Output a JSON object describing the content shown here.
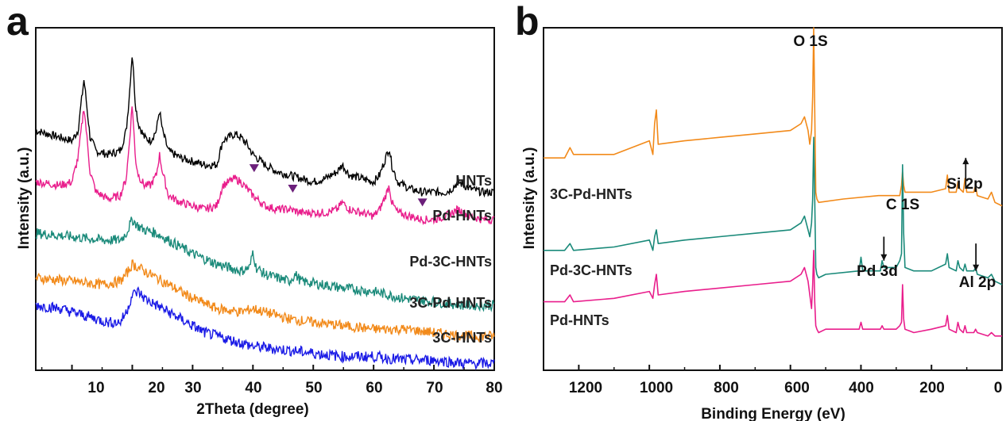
{
  "chart_data": [
    {
      "panel": "a",
      "type": "line",
      "xlabel": "2Theta (degree)",
      "ylabel": "Intensity (a.u.)",
      "xlim": [
        4,
        80
      ],
      "ylim": [
        0,
        100
      ],
      "xticks": [
        10,
        20,
        30,
        40,
        50,
        60,
        70,
        80
      ],
      "yticks_shown": false,
      "grid": false,
      "series": [
        {
          "name": "HNTs",
          "color": "#000000",
          "offset": 44,
          "noise": 1.2,
          "x": [
            4,
            8,
            10,
            11,
            12,
            13,
            14,
            16,
            18,
            19,
            19.5,
            20,
            20.5,
            21,
            22,
            23,
            24,
            24.5,
            25,
            26,
            28,
            30,
            32,
            34,
            35,
            36,
            37,
            38,
            39,
            40,
            42,
            44,
            46,
            48,
            50,
            52,
            54,
            54.8,
            56,
            58,
            60,
            61,
            62,
            62.6,
            63,
            64,
            66,
            68,
            70,
            72,
            73,
            74,
            76,
            78,
            80
          ],
          "y": [
            70,
            68,
            67,
            70,
            85,
            68,
            64,
            63,
            64,
            70,
            80,
            93,
            78,
            72,
            68,
            67,
            70,
            76,
            70,
            64,
            62,
            61,
            60,
            60,
            67,
            68,
            69,
            68,
            66,
            63,
            60,
            58,
            57,
            56,
            55,
            56,
            58,
            60,
            57,
            56,
            55,
            57,
            62,
            65,
            60,
            55,
            53,
            52,
            52,
            52,
            53,
            55,
            53,
            52,
            52
          ]
        },
        {
          "name": "Pd-HNTs",
          "color": "#e91e8c",
          "offset": 34,
          "noise": 1.2,
          "x": [
            4,
            8,
            10,
            11,
            12,
            13,
            14,
            16,
            18,
            19,
            19.5,
            20,
            20.5,
            21,
            22,
            23,
            24,
            24.5,
            25,
            26,
            28,
            30,
            32,
            34,
            35,
            36,
            37,
            38,
            39,
            40,
            42,
            44,
            46,
            48,
            50,
            52,
            54,
            54.8,
            56,
            58,
            60,
            61,
            62,
            62.6,
            63,
            64,
            66,
            68,
            70,
            72,
            73,
            74,
            76,
            78,
            80
          ],
          "y": [
            55,
            54,
            55,
            62,
            77,
            58,
            52,
            50,
            51,
            56,
            66,
            78,
            62,
            57,
            54,
            54,
            57,
            63,
            58,
            51,
            49,
            48,
            47,
            48,
            54,
            55,
            56,
            55,
            53,
            51,
            48,
            47,
            47,
            46,
            46,
            46,
            47,
            49,
            47,
            46,
            45,
            47,
            51,
            54,
            49,
            46,
            45,
            44,
            44,
            45,
            46,
            47,
            45,
            44,
            44
          ]
        },
        {
          "name": "Pd-3C-HNTs",
          "color": "#1a8a7a",
          "offset": 24,
          "noise": 1.5,
          "x": [
            4,
            10,
            15,
            18,
            19,
            20,
            21,
            22,
            24,
            26,
            28,
            30,
            34,
            38,
            39.5,
            40,
            40.5,
            42,
            46,
            47,
            48,
            55,
            60,
            65,
            70,
            75,
            80
          ],
          "y": [
            40,
            39,
            38,
            38,
            40,
            44,
            42,
            41,
            40,
            38,
            36,
            34,
            31,
            29,
            30,
            35,
            30,
            28,
            26,
            28,
            26,
            24,
            23,
            21,
            20,
            19,
            19
          ]
        },
        {
          "name": "3C-Pd-HNTs",
          "color": "#f28a1a",
          "offset": 14,
          "noise": 1.5,
          "x": [
            4,
            10,
            15,
            18,
            19,
            20,
            21,
            22,
            24,
            26,
            28,
            30,
            34,
            38,
            40,
            42,
            46,
            50,
            55,
            60,
            65,
            70,
            75,
            80
          ],
          "y": [
            27,
            26,
            25,
            26,
            28,
            31,
            30,
            29,
            27,
            25,
            23,
            21,
            18,
            17,
            18,
            17,
            15,
            14,
            13,
            12,
            12,
            11,
            10,
            10
          ]
        },
        {
          "name": "3C-HNTs",
          "color": "#1a1ae6",
          "offset": 4,
          "noise": 1.6,
          "x": [
            4,
            8,
            12,
            16,
            18,
            19,
            20,
            21,
            22,
            24,
            26,
            28,
            30,
            32,
            34,
            36,
            40,
            45,
            50,
            55,
            60,
            65,
            70,
            75,
            80
          ],
          "y": [
            19,
            18,
            16,
            14,
            14,
            17,
            22,
            23,
            21,
            19,
            17,
            15,
            13,
            11,
            10,
            9,
            7,
            6,
            5,
            4,
            4,
            3,
            3,
            2,
            2
          ]
        }
      ],
      "markers": [
        {
          "type": "triangle-down",
          "color": "#6b1f7a",
          "x": 40.2,
          "y": 59
        },
        {
          "type": "triangle-down",
          "color": "#6b1f7a",
          "x": 46.6,
          "y": 53
        },
        {
          "type": "triangle-down",
          "color": "#6b1f7a",
          "x": 68.1,
          "y": 49
        }
      ]
    },
    {
      "panel": "b",
      "type": "line",
      "xlabel": "Binding Energy (eV)",
      "ylabel": "Intensity (a.u.)",
      "xlim": [
        1300,
        0
      ],
      "ylim": [
        0,
        100
      ],
      "xticks": [
        1200,
        1000,
        800,
        600,
        400,
        200,
        0
      ],
      "yticks_shown": false,
      "grid": false,
      "series": [
        {
          "name": "3C-Pd-HNTs",
          "color": "#f28a1a",
          "x": [
            1300,
            1240,
            1225,
            1215,
            1100,
            1000,
            990,
            985,
            980,
            975,
            900,
            800,
            700,
            600,
            570,
            560,
            550,
            545,
            540,
            537,
            534,
            531,
            528,
            525,
            520,
            450,
            350,
            300,
            290,
            285,
            282,
            279,
            275,
            250,
            200,
            160,
            155,
            150,
            130,
            125,
            120,
            110,
            105,
            100,
            80,
            75,
            70,
            40,
            30,
            20,
            0
          ],
          "y": [
            62,
            62,
            65,
            63,
            63,
            67,
            63,
            72,
            76,
            66,
            67,
            68,
            69,
            70,
            72,
            74,
            70,
            66,
            70,
            80,
            100,
            76,
            52,
            50,
            49,
            50,
            51,
            51,
            51,
            54,
            58,
            54,
            52,
            52,
            52,
            53,
            57,
            52,
            52,
            55,
            53,
            52,
            56,
            52,
            52,
            54,
            51,
            50,
            52,
            49,
            48
          ]
        },
        {
          "name": "Pd-3C-HNTs",
          "color": "#1a8a7a",
          "x": [
            1300,
            1240,
            1225,
            1215,
            1100,
            1000,
            990,
            985,
            980,
            975,
            900,
            800,
            700,
            600,
            570,
            560,
            550,
            545,
            540,
            537,
            534,
            531,
            528,
            525,
            520,
            500,
            405,
            400,
            395,
            345,
            340,
            335,
            300,
            290,
            285,
            282,
            279,
            275,
            250,
            200,
            160,
            155,
            150,
            130,
            125,
            120,
            110,
            105,
            100,
            80,
            75,
            70,
            40,
            30,
            20,
            0
          ],
          "y": [
            35,
            35,
            37,
            35,
            36,
            38,
            35,
            39,
            41,
            37,
            38,
            39,
            40,
            41,
            43,
            45,
            41,
            39,
            43,
            50,
            68,
            50,
            30,
            28,
            27,
            28,
            29,
            33,
            29,
            29,
            32,
            30,
            30,
            32,
            34,
            60,
            40,
            30,
            29,
            29,
            31,
            34,
            30,
            29,
            32,
            30,
            29,
            31,
            29,
            29,
            30,
            28,
            27,
            28,
            26,
            25
          ]
        },
        {
          "name": "Pd-HNTs",
          "color": "#e91e8c",
          "x": [
            1300,
            1240,
            1225,
            1215,
            1100,
            1000,
            990,
            985,
            980,
            975,
            900,
            800,
            700,
            600,
            570,
            560,
            550,
            545,
            540,
            537,
            534,
            531,
            528,
            525,
            520,
            500,
            405,
            400,
            395,
            345,
            340,
            335,
            300,
            290,
            285,
            282,
            279,
            275,
            250,
            200,
            160,
            155,
            150,
            130,
            125,
            120,
            110,
            105,
            100,
            80,
            75,
            70,
            40,
            30,
            20,
            0
          ],
          "y": [
            20,
            20,
            22,
            20,
            21,
            23,
            21,
            25,
            28,
            22,
            23,
            24,
            25,
            26,
            28,
            30,
            26,
            22,
            18,
            25,
            35,
            20,
            13,
            12,
            11,
            12,
            12,
            14,
            12,
            12,
            13,
            12,
            12,
            13,
            14,
            25,
            15,
            12,
            11,
            12,
            13,
            16,
            12,
            11,
            14,
            12,
            11,
            13,
            11,
            11,
            12,
            11,
            10,
            11,
            10,
            10
          ]
        }
      ],
      "annotations": [
        {
          "text": "O 1S",
          "x": 530,
          "y": 97
        },
        {
          "text": "C 1S",
          "x": 284,
          "y": 59
        },
        {
          "text": "Si 2p",
          "x": 103,
          "y": 62
        },
        {
          "text": "Pd 3d",
          "x": 335,
          "y": 39
        },
        {
          "text": "Al 2p",
          "x": 74,
          "y": 37
        }
      ],
      "arrows": [
        {
          "label": "Si 2p",
          "direction": "up",
          "x": 103,
          "y_from": 53,
          "y_to": 62
        },
        {
          "label": "Pd 3d",
          "direction": "down",
          "x": 335,
          "y_from": 39,
          "y_to": 32
        },
        {
          "label": "Al 2p",
          "direction": "down",
          "x": 74,
          "y_from": 37,
          "y_to": 29
        }
      ]
    }
  ],
  "panels": {
    "a": {
      "letter": "a",
      "xlabel": "2Theta (degree)",
      "ylabel": "Intensity (a.u.)",
      "tick_labels": [
        "10",
        "20",
        "30",
        "40",
        "50",
        "60",
        "70",
        "80"
      ],
      "series_labels": [
        "HNTs",
        "Pd-HNTs",
        "Pd-3C-HNTs",
        "3C-Pd-HNTs",
        "3C-HNTs"
      ]
    },
    "b": {
      "letter": "b",
      "xlabel": "Binding Energy (eV)",
      "ylabel": "Intensity (a.u.)",
      "tick_labels": [
        "1200",
        "1000",
        "800",
        "600",
        "400",
        "200",
        "0"
      ],
      "series_labels": [
        "3C-Pd-HNTs",
        "Pd-3C-HNTs",
        "Pd-HNTs"
      ],
      "peak_labels": [
        "O 1S",
        "C 1S",
        "Si 2p",
        "Pd 3d",
        "Al 2p"
      ]
    }
  }
}
